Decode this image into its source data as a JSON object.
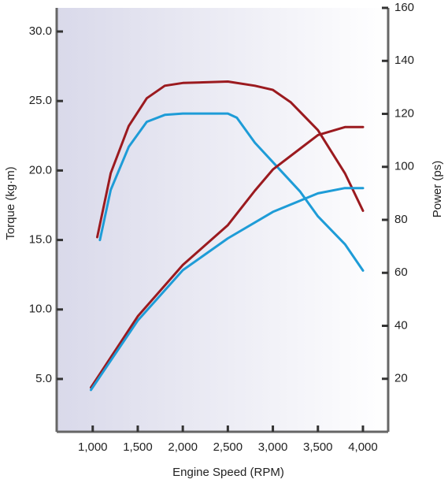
{
  "chart_data": {
    "type": "line",
    "xlabel": "Engine Speed (RPM)",
    "ylabel": "Torque (kg·m)",
    "y2label": "Power (ps)",
    "xlim": [
      600,
      4280
    ],
    "ylim": [
      1.2,
      31.7
    ],
    "y2lim": [
      0,
      160
    ],
    "xticks": [
      {
        "value": 1000,
        "label": "1,000"
      },
      {
        "value": 1500,
        "label": "1,500"
      },
      {
        "value": 2000,
        "label": "2,000"
      },
      {
        "value": 2500,
        "label": "2,500"
      },
      {
        "value": 3000,
        "label": "3,000"
      },
      {
        "value": 3500,
        "label": "3,500"
      },
      {
        "value": 4000,
        "label": "4,000"
      }
    ],
    "yticks": [
      {
        "value": 5,
        "label": "5.0"
      },
      {
        "value": 10,
        "label": "10.0"
      },
      {
        "value": 15,
        "label": "15.0"
      },
      {
        "value": 20,
        "label": "20.0"
      },
      {
        "value": 25,
        "label": "25.0"
      },
      {
        "value": 30,
        "label": "30.0"
      }
    ],
    "y2ticks": [
      20,
      40,
      60,
      80,
      100,
      120,
      140,
      160
    ],
    "series": [
      {
        "color": "#9b1a1f",
        "x": [
          1050,
          1200,
          1400,
          1600,
          1800,
          2000,
          2500,
          2800,
          3000,
          3200,
          3500,
          3800,
          4000
        ],
        "values": [
          15.2,
          19.8,
          23.2,
          25.2,
          26.1,
          26.3,
          26.4,
          26.1,
          25.8,
          24.9,
          22.9,
          19.8,
          17.1
        ]
      },
      {
        "color": "#1e9cd7",
        "x": [
          1080,
          1200,
          1400,
          1600,
          1800,
          2000,
          2500,
          2600,
          2800,
          3000,
          3300,
          3500,
          3800,
          4000
        ],
        "values": [
          15.0,
          18.6,
          21.7,
          23.5,
          24.0,
          24.1,
          24.1,
          23.8,
          22.0,
          20.6,
          18.5,
          16.7,
          14.7,
          12.8
        ]
      },
      {
        "color": "#9b1a1f",
        "axis": "y2",
        "x": [
          980,
          1500,
          2000,
          2500,
          2800,
          3000,
          3500,
          3800,
          4000
        ],
        "values": [
          16.7,
          43.6,
          63,
          78,
          91,
          99,
          112,
          115,
          115
        ]
      },
      {
        "color": "#1e9cd7",
        "axis": "y2",
        "x": [
          980,
          1500,
          2000,
          2500,
          3000,
          3500,
          3800,
          4000
        ],
        "values": [
          15.8,
          42,
          61,
          73,
          83,
          90,
          92,
          92
        ]
      }
    ]
  }
}
